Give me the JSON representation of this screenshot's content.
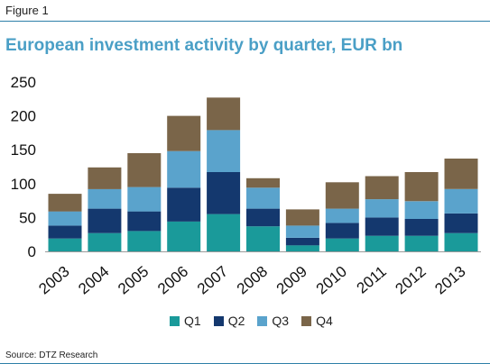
{
  "figure_label": "Figure 1",
  "source": "Source: DTZ Research",
  "chart_data": {
    "type": "bar",
    "stacked": true,
    "title": "European investment activity by quarter, EUR bn",
    "xlabel": "",
    "ylabel": "",
    "ylim": [
      0,
      250
    ],
    "yticks": [
      0,
      50,
      100,
      150,
      200,
      250
    ],
    "grid": false,
    "legend_position": "bottom",
    "categories": [
      "2003",
      "2004",
      "2005",
      "2006",
      "2007",
      "2008",
      "2009",
      "2010",
      "2011",
      "2012",
      "2013"
    ],
    "series": [
      {
        "name": "Q1",
        "color": "#1a9a9a",
        "values": [
          19,
          27,
          30,
          44,
          55,
          37,
          9,
          19,
          23,
          23,
          27
        ]
      },
      {
        "name": "Q2",
        "color": "#14386e",
        "values": [
          19,
          36,
          29,
          50,
          62,
          26,
          11,
          23,
          27,
          25,
          29
        ]
      },
      {
        "name": "Q3",
        "color": "#5aa3cc",
        "values": [
          21,
          29,
          36,
          54,
          62,
          31,
          18,
          21,
          27,
          26,
          36
        ]
      },
      {
        "name": "Q4",
        "color": "#7a6549",
        "values": [
          26,
          32,
          50,
          52,
          48,
          14,
          24,
          39,
          34,
          43,
          45
        ]
      }
    ]
  }
}
